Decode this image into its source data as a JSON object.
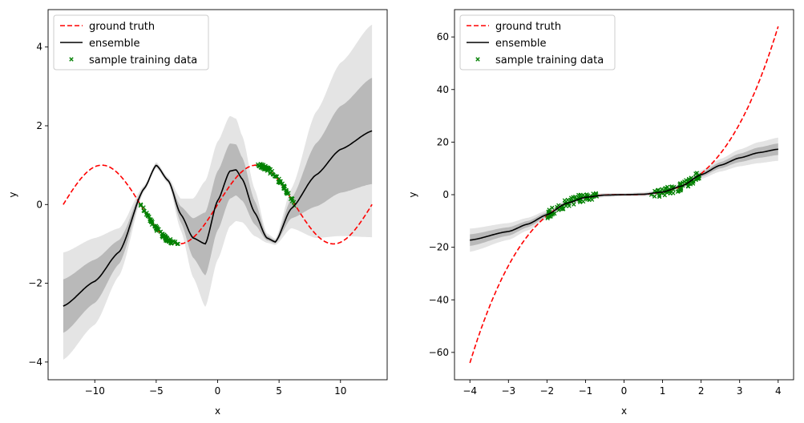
{
  "chart_data": [
    {
      "type": "line",
      "xlabel": "x",
      "ylabel": "y",
      "xlim": [
        -13.8,
        13.8
      ],
      "ylim": [
        -4.45,
        4.95
      ],
      "xticks": [
        -10,
        -5,
        0,
        5,
        10
      ],
      "yticks": [
        -4,
        -2,
        0,
        2,
        4
      ],
      "xtick_labels": [
        "−10",
        "−5",
        "0",
        "5",
        "10"
      ],
      "ytick_labels": [
        "−4",
        "−2",
        "0",
        "2",
        "4"
      ],
      "legend": {
        "position": "top-left",
        "entries": [
          {
            "label": "ground truth",
            "style": "dashed-line",
            "color": "#ff0000"
          },
          {
            "label": "ensemble",
            "style": "solid-line",
            "color": "#000000"
          },
          {
            "label": "sample training data",
            "style": "x-marker",
            "color": "#008000"
          }
        ]
      },
      "ground_truth_function": "sin(x/2)",
      "ground_truth_range": [
        -12.57,
        12.57
      ],
      "ensemble_knots": {
        "x": [
          -12.57,
          -10,
          -8,
          -6,
          -5,
          -4,
          -3,
          -2,
          -1,
          0,
          1,
          1.5,
          2,
          3,
          4,
          4.7,
          6,
          8,
          10,
          12.57
        ],
        "mean": [
          -2.58,
          -1.95,
          -1.2,
          0.4,
          1.0,
          0.6,
          -0.25,
          -0.85,
          -1.0,
          0.1,
          0.85,
          0.88,
          0.65,
          -0.2,
          -0.85,
          -0.95,
          -0.1,
          0.75,
          1.4,
          1.87
        ],
        "std": [
          0.68,
          0.55,
          0.3,
          0.04,
          0.04,
          0.04,
          0.2,
          0.5,
          0.8,
          0.75,
          0.7,
          0.65,
          0.55,
          0.3,
          0.06,
          0.04,
          0.25,
          0.8,
          1.1,
          1.35
        ]
      },
      "training_ranges": [
        [
          -6.3,
          -3.2
        ],
        [
          3.2,
          6.3
        ]
      ],
      "colors": {
        "ground_truth": "#ff0000",
        "ensemble": "#000000",
        "training": "#008000",
        "band": "#555555"
      }
    },
    {
      "type": "line",
      "xlabel": "x",
      "ylabel": "y",
      "xlim": [
        -4.4,
        4.4
      ],
      "ylim": [
        -70.4,
        70.4
      ],
      "xticks": [
        -4,
        -3,
        -2,
        -1,
        0,
        1,
        2,
        3,
        4
      ],
      "yticks": [
        -60,
        -40,
        -20,
        0,
        20,
        40,
        60
      ],
      "xtick_labels": [
        "−4",
        "−3",
        "−2",
        "−1",
        "0",
        "1",
        "2",
        "3",
        "4"
      ],
      "ytick_labels": [
        "−60",
        "−40",
        "−20",
        "0",
        "20",
        "40",
        "60"
      ],
      "legend": {
        "position": "top-left",
        "entries": [
          {
            "label": "ground truth",
            "style": "dashed-line",
            "color": "#ff0000"
          },
          {
            "label": "ensemble",
            "style": "solid-line",
            "color": "#000000"
          },
          {
            "label": "sample training data",
            "style": "x-marker",
            "color": "#008000"
          }
        ]
      },
      "ground_truth_function": "x^3",
      "ground_truth_range": [
        -4,
        4
      ],
      "ensemble_knots": {
        "x": [
          -4,
          -3,
          -2.5,
          -2,
          -1.5,
          -1,
          -0.5,
          0,
          0.5,
          1,
          1.5,
          2,
          2.5,
          3,
          3.5,
          4
        ],
        "mean": [
          -17.3,
          -14.0,
          -11.2,
          -7.6,
          -3.3,
          -1.0,
          -0.15,
          0,
          0.15,
          1.0,
          3.3,
          7.6,
          11.2,
          14.0,
          16.0,
          17.3
        ],
        "std": [
          2.2,
          1.6,
          1.2,
          0.8,
          0.6,
          0.5,
          0.4,
          0.3,
          0.4,
          0.5,
          0.6,
          0.8,
          1.2,
          1.6,
          2.0,
          2.2
        ]
      },
      "training_ranges": [
        [
          -2,
          -0.7
        ],
        [
          0.7,
          2
        ]
      ],
      "colors": {
        "ground_truth": "#ff0000",
        "ensemble": "#000000",
        "training": "#008000",
        "band": "#555555"
      }
    }
  ]
}
